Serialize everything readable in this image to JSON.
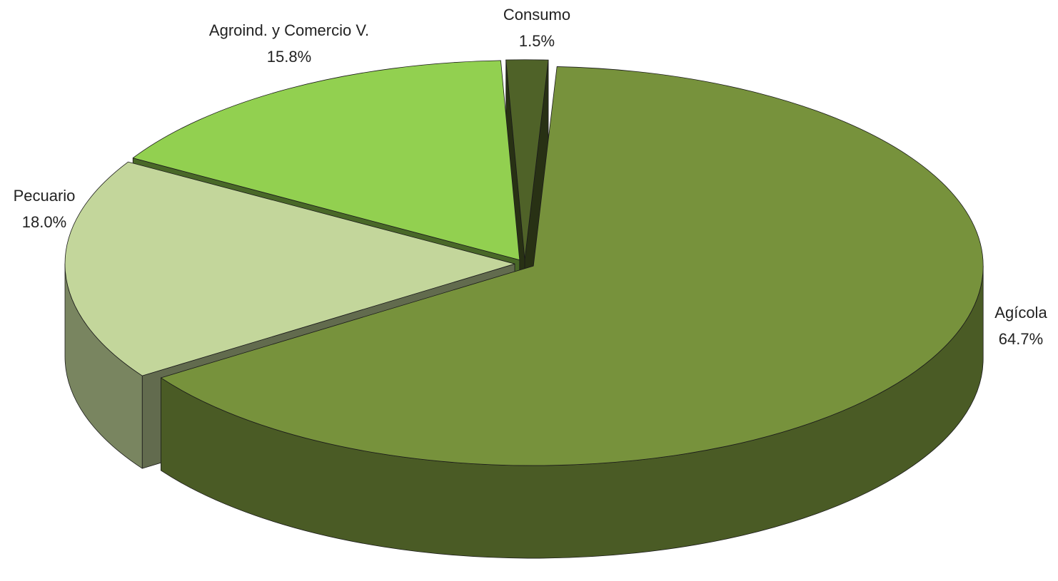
{
  "chart_data": {
    "type": "pie",
    "categories": [
      "Agícola",
      "Pecuario",
      "Agroind. y Comercio V.",
      "Consumo"
    ],
    "values": [
      64.7,
      18.0,
      15.8,
      1.5
    ],
    "value_labels": [
      "64.7%",
      "18.0%",
      "15.8%",
      "1.5%"
    ],
    "colors": [
      "#77923c",
      "#c3d69b",
      "#92d050",
      "#4f6228"
    ]
  }
}
